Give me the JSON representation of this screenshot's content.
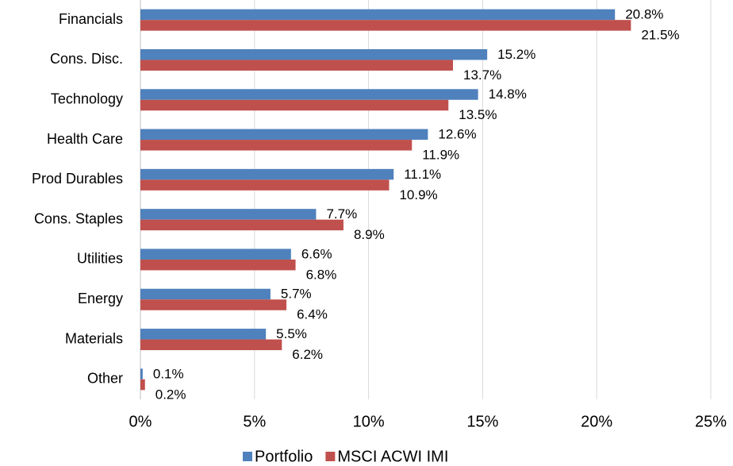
{
  "chart_data": {
    "type": "hbar",
    "categories": [
      "Financials",
      "Cons. Disc.",
      "Technology",
      "Health Care",
      "Prod Durables",
      "Cons. Staples",
      "Utilities",
      "Energy",
      "Materials",
      "Other"
    ],
    "series": [
      {
        "name": "Portfolio",
        "color": "#4f81bd",
        "values": [
          20.8,
          15.2,
          14.8,
          12.6,
          11.1,
          7.7,
          6.6,
          5.7,
          5.5,
          0.1
        ],
        "value_labels": [
          "20.8%",
          "15.2%",
          "14.8%",
          "12.6%",
          "11.1%",
          "7.7%",
          "6.6%",
          "5.7%",
          "5.5%",
          "0.1%"
        ]
      },
      {
        "name": "MSCI ACWI IMI",
        "color": "#c0504d",
        "values": [
          21.5,
          13.7,
          13.5,
          11.9,
          10.9,
          8.9,
          6.8,
          6.4,
          6.2,
          0.2
        ],
        "value_labels": [
          "21.5%",
          "13.7%",
          "13.5%",
          "11.9%",
          "10.9%",
          "8.9%",
          "6.8%",
          "6.4%",
          "6.2%",
          "0.2%"
        ]
      }
    ],
    "xlim": [
      0,
      25
    ],
    "xticks": [
      {
        "value": 0,
        "label": "0%"
      },
      {
        "value": 5,
        "label": "5%"
      },
      {
        "value": 10,
        "label": "10%"
      },
      {
        "value": 15,
        "label": "15%"
      },
      {
        "value": 20,
        "label": "20%"
      },
      {
        "value": 25,
        "label": "25%"
      }
    ],
    "grid": true,
    "legend": "bottom"
  }
}
